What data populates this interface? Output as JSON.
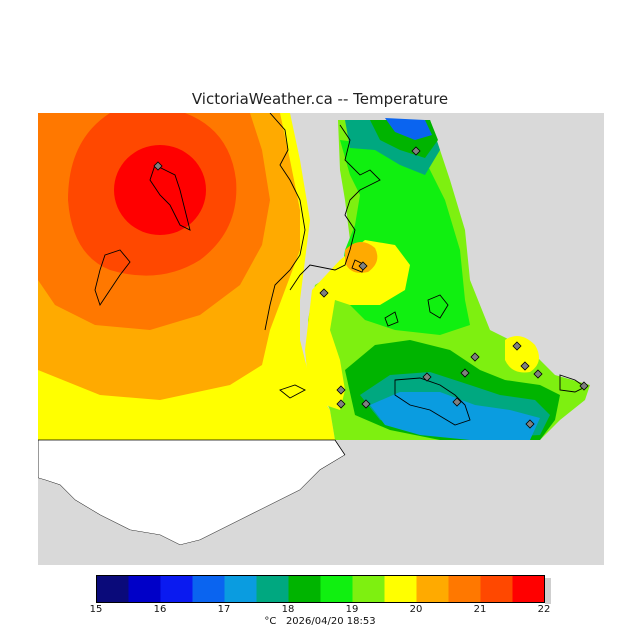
{
  "header": {
    "title": "VictoriaWeather.ca -- Temperature"
  },
  "legend": {
    "ticks": [
      "15",
      "16",
      "17",
      "18",
      "19",
      "20",
      "21",
      "22"
    ],
    "colors": [
      "#0a0a7a",
      "#0000c8",
      "#0a1af0",
      "#0a64f0",
      "#0a9ce0",
      "#00a880",
      "#00b400",
      "#10f010",
      "#7ef010",
      "#ffff00",
      "#ffaa00",
      "#ff7800",
      "#ff4800",
      "#ff0000"
    ]
  },
  "footer": {
    "unit": "°C",
    "timestamp": "2026/04/20 18:53"
  },
  "colors": {
    "water_gray": "#d9d9d9",
    "land": "#ffffff",
    "station_fill": "#808080"
  }
}
